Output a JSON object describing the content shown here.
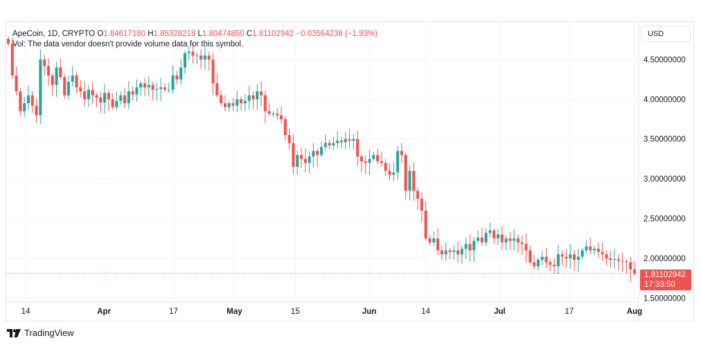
{
  "legend": {
    "symbol": "ApeCoin, 1D, CRYPTO",
    "open_label": "O",
    "open": "1.84617180",
    "high_label": "H",
    "high": "1.85328218",
    "low_label": "L",
    "low": "1.80474850",
    "close_label": "C",
    "close": "1.81102942",
    "change": "−0.03564238 (−1.93%)",
    "volume_note": "Vol: The data vendor doesn't provide volume data for this symbol."
  },
  "toolbar": {
    "currency_label": "USD"
  },
  "price_tag": {
    "price": "1.81102942",
    "countdown": "17:33:50"
  },
  "brand": {
    "name": "TradingView"
  },
  "colors": {
    "up": "#26a69a",
    "down": "#ef5350",
    "grid": "#f0f3fa",
    "last_price_line": "#ef5350"
  },
  "chart_data": {
    "type": "candlestick",
    "title": "ApeCoin, 1D, CRYPTO",
    "y_ticks": [
      "4.50000000",
      "4.00000000",
      "3.50000000",
      "3.00000000",
      "2.50000000",
      "2.00000000",
      "1.50000000"
    ],
    "y_tick_values": [
      4.5,
      4.0,
      3.5,
      3.0,
      2.5,
      2.0,
      1.5
    ],
    "ylim": [
      1.45,
      4.97
    ],
    "x_ticks": [
      {
        "label": "14",
        "date": "2022-03-14",
        "bold": false
      },
      {
        "label": "Apr",
        "date": "2022-04-01",
        "bold": true
      },
      {
        "label": "17",
        "date": "2022-04-17",
        "bold": false
      },
      {
        "label": "May",
        "date": "2022-05-01",
        "bold": true
      },
      {
        "label": "15",
        "date": "2022-05-15",
        "bold": false
      },
      {
        "label": "Jun",
        "date": "2022-06-01",
        "bold": true
      },
      {
        "label": "14",
        "date": "2022-06-14",
        "bold": false
      },
      {
        "label": "Jul",
        "date": "2022-07-01",
        "bold": true
      },
      {
        "label": "17",
        "date": "2022-07-17",
        "bold": false
      },
      {
        "label": "Aug",
        "date": "2022-08-01",
        "bold": true
      }
    ],
    "last_price": 1.81102942,
    "grid": true,
    "date_range": [
      "2022-03-10",
      "2022-08-01"
    ],
    "closes": [
      4.7,
      4.3,
      4.1,
      3.85,
      3.95,
      4.05,
      3.92,
      3.8,
      4.5,
      4.42,
      4.3,
      4.18,
      4.4,
      4.28,
      4.05,
      4.22,
      4.3,
      4.15,
      4.1,
      4.0,
      4.12,
      4.05,
      4.02,
      3.96,
      4.08,
      4.0,
      3.9,
      3.98,
      4.05,
      3.95,
      4.1,
      4.06,
      4.15,
      4.2,
      4.15,
      4.18,
      4.12,
      4.13,
      4.15,
      4.12,
      4.12,
      4.3,
      4.25,
      4.4,
      4.58,
      4.6,
      4.55,
      4.55,
      4.5,
      4.55,
      4.5,
      4.2,
      4.05,
      3.95,
      3.9,
      3.95,
      3.92,
      4.0,
      3.95,
      3.98,
      4.05,
      4.0,
      4.1,
      4.05,
      3.85,
      3.82,
      3.82,
      3.8,
      3.75,
      3.55,
      3.45,
      3.15,
      3.3,
      3.25,
      3.2,
      3.28,
      3.35,
      3.3,
      3.4,
      3.45,
      3.42,
      3.45,
      3.48,
      3.46,
      3.5,
      3.48,
      3.5,
      3.28,
      3.22,
      3.2,
      3.25,
      3.3,
      3.22,
      3.2,
      3.1,
      3.05,
      3.08,
      3.35,
      3.3,
      2.85,
      3.1,
      2.85,
      2.75,
      2.6,
      2.25,
      2.2,
      2.25,
      2.1,
      2.05,
      2.1,
      2.08,
      2.1,
      2.05,
      2.12,
      2.18,
      2.1,
      2.22,
      2.26,
      2.2,
      2.32,
      2.35,
      2.25,
      2.3,
      2.2,
      2.25,
      2.22,
      2.25,
      2.2,
      2.18,
      2.1,
      1.95,
      1.9,
      1.98,
      2.02,
      1.95,
      1.92,
      1.9,
      2.05,
      2.02,
      2.0,
      2.05,
      1.98,
      2.02,
      2.1,
      2.15,
      2.1,
      2.12,
      2.08,
      2.05,
      2.0,
      1.98,
      1.99,
      1.97,
      1.96,
      1.95,
      1.86,
      1.81
    ]
  }
}
